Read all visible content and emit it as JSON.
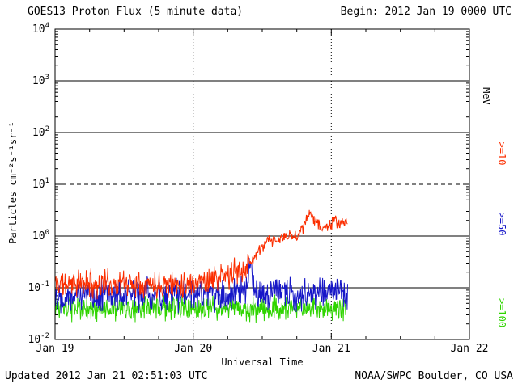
{
  "header": {
    "title": "GOES13 Proton Flux (5 minute data)",
    "begin": "Begin: 2012 Jan 19 0000 UTC"
  },
  "footer": {
    "updated": "Updated 2012 Jan 21 02:51:03 UTC",
    "source": "NOAA/SWPC Boulder, CO USA"
  },
  "chart_data": {
    "type": "line",
    "title": "GOES13 Proton Flux (5 minute data)",
    "xlabel": "Universal Time",
    "ylabel": "Particles  cm⁻²s⁻¹sr⁻¹",
    "right_axis_unit": "MeV",
    "xlim_days": [
      0,
      3
    ],
    "xticklabels": [
      "Jan 19",
      "Jan 20",
      "Jan 21",
      "Jan 22"
    ],
    "ylim": [
      0.01,
      10000
    ],
    "y_scale": "log",
    "y_exponents": [
      4,
      3,
      2,
      1,
      0,
      -1,
      -2
    ],
    "grid": {
      "h_solid": [
        1000,
        100,
        1,
        0.1
      ],
      "h_dashed": [
        10
      ],
      "v_dotted_days": [
        1,
        2
      ]
    },
    "sample_step_days": 0.003472,
    "axis_color": "#000000",
    "background": "#ffffff",
    "series": [
      {
        "label": ">=10",
        "name": "protons >=10 MeV",
        "color": "#fb2e00",
        "seed": 11,
        "noise_dex": 0.16,
        "tmax": 2.119,
        "keypoints": [
          [
            0.0,
            0.125
          ],
          [
            0.06,
            0.11
          ],
          [
            0.12,
            0.13
          ],
          [
            0.18,
            0.118
          ],
          [
            0.24,
            0.128
          ],
          [
            0.3,
            0.112
          ],
          [
            0.36,
            0.124
          ],
          [
            0.42,
            0.115
          ],
          [
            0.48,
            0.126
          ],
          [
            0.54,
            0.118
          ],
          [
            0.6,
            0.13
          ],
          [
            0.66,
            0.12
          ],
          [
            0.72,
            0.115
          ],
          [
            0.78,
            0.124
          ],
          [
            0.84,
            0.114
          ],
          [
            0.9,
            0.126
          ],
          [
            0.96,
            0.12
          ],
          [
            1.02,
            0.13
          ],
          [
            1.08,
            0.138
          ],
          [
            1.14,
            0.148
          ],
          [
            1.2,
            0.158
          ],
          [
            1.26,
            0.172
          ],
          [
            1.32,
            0.205
          ],
          [
            1.38,
            0.26
          ],
          [
            1.44,
            0.38
          ],
          [
            1.49,
            0.56
          ],
          [
            1.53,
            0.76
          ],
          [
            1.57,
            0.82
          ],
          [
            1.6,
            0.76
          ],
          [
            1.64,
            0.92
          ],
          [
            1.68,
            1.0
          ],
          [
            1.72,
            0.96
          ],
          [
            1.76,
            1.1
          ],
          [
            1.8,
            1.55
          ],
          [
            1.83,
            2.2
          ],
          [
            1.85,
            2.75
          ],
          [
            1.87,
            2.4
          ],
          [
            1.9,
            1.75
          ],
          [
            1.94,
            1.4
          ],
          [
            1.98,
            1.6
          ],
          [
            2.02,
            1.95
          ],
          [
            2.06,
            1.7
          ],
          [
            2.09,
            1.95
          ],
          [
            2.119,
            1.6
          ]
        ]
      },
      {
        "label": ">=50",
        "name": "protons >=50 MeV",
        "color": "#1616c8",
        "seed": 22,
        "noise_dex": 0.19,
        "tmax": 2.119,
        "keypoints": [
          [
            0.0,
            0.074
          ],
          [
            0.5,
            0.076
          ],
          [
            1.0,
            0.073
          ],
          [
            1.39,
            0.075
          ],
          [
            1.415,
            0.33
          ],
          [
            1.44,
            0.077
          ],
          [
            1.8,
            0.08
          ],
          [
            2.119,
            0.082
          ]
        ]
      },
      {
        "label": ">=100",
        "name": "protons >=100 MeV",
        "color": "#2fd400",
        "seed": 33,
        "noise_dex": 0.14,
        "tmax": 2.105,
        "keypoints": [
          [
            0.0,
            0.04
          ],
          [
            0.5,
            0.038
          ],
          [
            1.0,
            0.041
          ],
          [
            1.5,
            0.039
          ],
          [
            2.105,
            0.04
          ]
        ]
      }
    ]
  }
}
